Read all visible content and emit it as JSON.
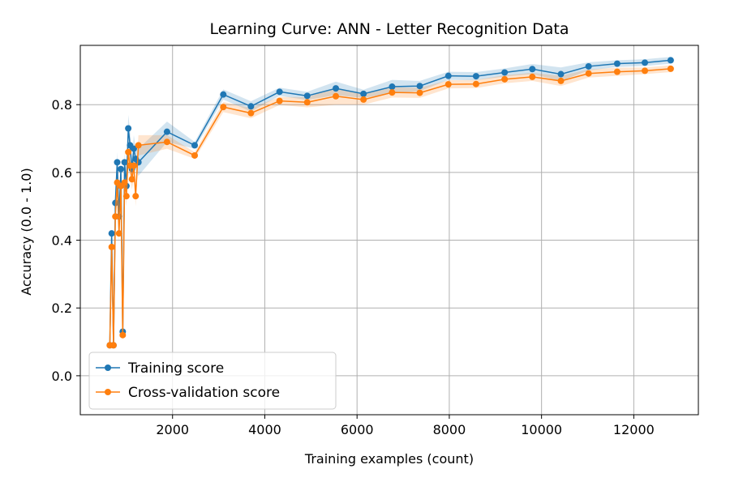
{
  "chart_data": {
    "type": "line",
    "title": "Learning Curve: ANN - Letter Recognition Data",
    "xlabel": "Training examples (count)",
    "ylabel": "Accuracy (0.0 - 1.0)",
    "xlim": [
      0,
      13400
    ],
    "ylim": [
      -0.115,
      0.975
    ],
    "xticks": [
      2000,
      4000,
      6000,
      8000,
      10000,
      12000
    ],
    "yticks": [
      0.0,
      0.2,
      0.4,
      0.6,
      0.8
    ],
    "xtick_labels": [
      "2000",
      "4000",
      "6000",
      "8000",
      "10000",
      "12000"
    ],
    "ytick_labels": [
      "0.0",
      "0.2",
      "0.4",
      "0.6",
      "0.8"
    ],
    "grid": true,
    "legend_position": "lower-left",
    "colors": {
      "training": "#1f77b4",
      "cv": "#ff7f0e"
    },
    "x": [
      640,
      680,
      720,
      760,
      800,
      840,
      880,
      920,
      960,
      1000,
      1040,
      1080,
      1120,
      1160,
      1200,
      1260,
      1880,
      2480,
      3100,
      3700,
      4320,
      4920,
      5540,
      6140,
      6760,
      7360,
      7980,
      8580,
      9200,
      9800,
      10420,
      11020,
      11640,
      12240,
      12800
    ],
    "series": [
      {
        "name": "Training score",
        "values": [
          0.09,
          0.42,
          0.09,
          0.51,
          0.63,
          0.47,
          0.61,
          0.13,
          0.63,
          0.56,
          0.73,
          0.68,
          0.61,
          0.67,
          0.64,
          0.63,
          0.72,
          0.68,
          0.83,
          0.795,
          0.838,
          0.826,
          0.848,
          0.832,
          0.853,
          0.855,
          0.885,
          0.884,
          0.895,
          0.905,
          0.89,
          0.913,
          0.921,
          0.924,
          0.931
        ],
        "band": [
          0.01,
          0.02,
          0.01,
          0.03,
          0.03,
          0.03,
          0.03,
          0.02,
          0.03,
          0.03,
          0.04,
          0.04,
          0.03,
          0.04,
          0.03,
          0.04,
          0.03,
          0.01,
          0.015,
          0.015,
          0.012,
          0.012,
          0.02,
          0.012,
          0.02,
          0.015,
          0.012,
          0.012,
          0.012,
          0.015,
          0.02,
          0.012,
          0.01,
          0.01,
          0.01
        ]
      },
      {
        "name": "Cross-validation score",
        "values": [
          0.09,
          0.38,
          0.09,
          0.47,
          0.57,
          0.42,
          0.56,
          0.12,
          0.57,
          0.53,
          0.66,
          0.62,
          0.58,
          0.62,
          0.53,
          0.68,
          0.69,
          0.65,
          0.793,
          0.775,
          0.811,
          0.807,
          0.825,
          0.815,
          0.836,
          0.835,
          0.86,
          0.861,
          0.875,
          0.882,
          0.87,
          0.892,
          0.897,
          0.9,
          0.906
        ],
        "band": [
          0.01,
          0.02,
          0.01,
          0.03,
          0.03,
          0.03,
          0.03,
          0.02,
          0.03,
          0.03,
          0.04,
          0.04,
          0.03,
          0.04,
          0.03,
          0.03,
          0.02,
          0.01,
          0.015,
          0.015,
          0.012,
          0.015,
          0.025,
          0.015,
          0.015,
          0.015,
          0.012,
          0.012,
          0.012,
          0.012,
          0.015,
          0.012,
          0.012,
          0.01,
          0.01
        ]
      }
    ]
  }
}
